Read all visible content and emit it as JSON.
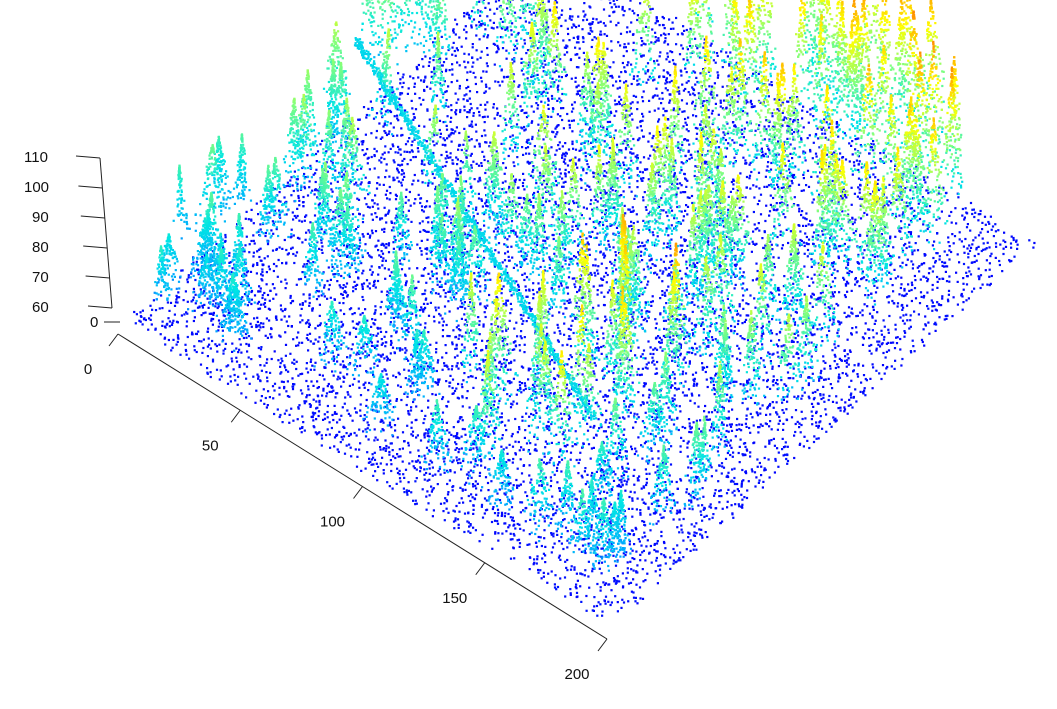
{
  "chart_data": {
    "type": "scatter",
    "subtype": "3d-point-cloud",
    "title": "",
    "xlabel": "",
    "ylabel": "",
    "zlabel": "",
    "x_axis": {
      "range": [
        0,
        200
      ],
      "ticks": [
        0,
        50,
        100,
        150,
        200
      ]
    },
    "z_axis": {
      "range": [
        60,
        110
      ],
      "ticks": [
        60,
        70,
        80,
        90,
        100,
        110
      ]
    },
    "y_axis": {
      "ticks": [
        0
      ]
    },
    "color_scale": {
      "variable": "height",
      "stops": [
        "#0000ff",
        "#00aaff",
        "#00e5e5",
        "#7fff7f",
        "#ffff00",
        "#ff8c00",
        "#ff0000"
      ]
    },
    "grid": false,
    "legend": "none"
  }
}
